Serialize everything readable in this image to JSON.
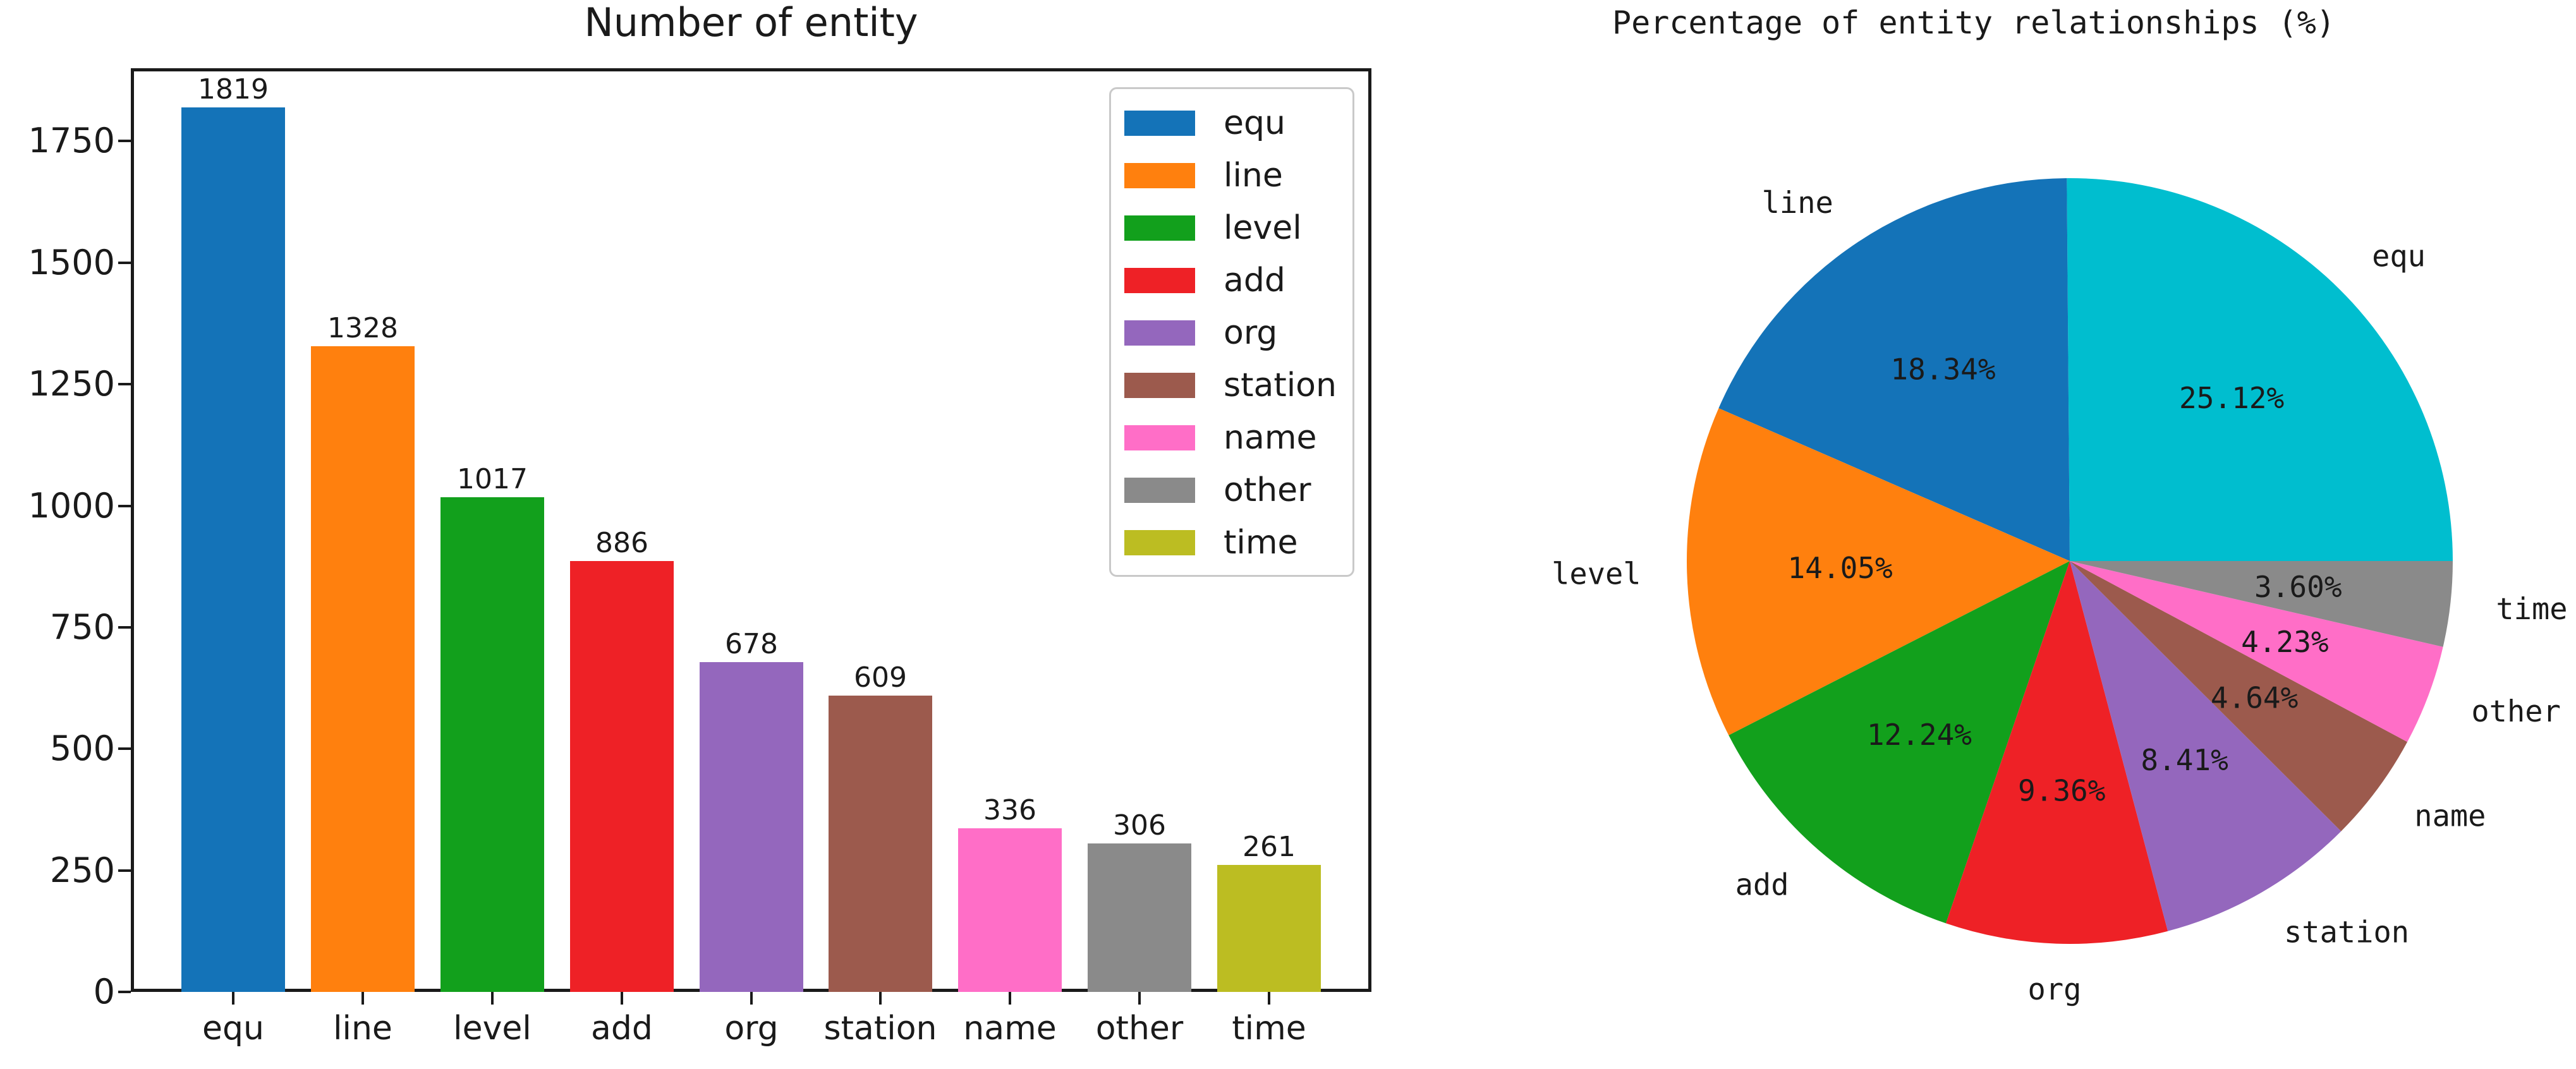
{
  "chart_data": [
    {
      "type": "bar",
      "title": "Number of entity",
      "categories": [
        "equ",
        "line",
        "level",
        "add",
        "org",
        "station",
        "name",
        "other",
        "time"
      ],
      "values": [
        1819,
        1328,
        1017,
        886,
        678,
        609,
        336,
        306,
        261
      ],
      "bar_colors": [
        "#1473b8",
        "#ff800e",
        "#12a01c",
        "#ee2126",
        "#9467bd",
        "#9c5a4d",
        "#ff6ec7",
        "#8a8a8a",
        "#bcbd22"
      ],
      "value_labels": [
        "1819",
        "1328",
        "1017",
        "886",
        "678",
        "609",
        "336",
        "306",
        "261"
      ],
      "xlabel": "",
      "ylabel": "",
      "yticks": [
        0,
        250,
        500,
        750,
        1000,
        1250,
        1500,
        1750
      ],
      "ylim": [
        0,
        1900
      ],
      "grid": false,
      "legend": {
        "position": "upper right",
        "entries": [
          {
            "label": "equ",
            "color": "#1473b8"
          },
          {
            "label": "line",
            "color": "#ff800e"
          },
          {
            "label": "level",
            "color": "#12a01c"
          },
          {
            "label": "add",
            "color": "#ee2126"
          },
          {
            "label": "org",
            "color": "#9467bd"
          },
          {
            "label": "station",
            "color": "#9c5a4d"
          },
          {
            "label": "name",
            "color": "#ff6ec7"
          },
          {
            "label": "other",
            "color": "#8a8a8a"
          },
          {
            "label": "time",
            "color": "#bcbd22"
          }
        ]
      }
    },
    {
      "type": "pie",
      "title": "Percentage of entity relationships (%)",
      "labels": [
        "equ",
        "line",
        "level",
        "add",
        "org",
        "station",
        "name",
        "other",
        "time"
      ],
      "values": [
        25.12,
        18.34,
        14.05,
        12.24,
        9.36,
        8.41,
        4.64,
        4.23,
        3.6
      ],
      "pct_labels": [
        "25.12%",
        "18.34%",
        "14.05%",
        "12.24%",
        "9.36%",
        "8.41%",
        "4.64%",
        "4.23%",
        "3.60%"
      ],
      "slice_colors": [
        "#00becf",
        "#1473b8",
        "#ff800e",
        "#12a01c",
        "#ee2126",
        "#9467bd",
        "#9c5a4d",
        "#ff6ec7",
        "#8a8a8a"
      ],
      "start_angle_deg": 0,
      "direction": "counterclockwise",
      "label_distance": 1.12,
      "pct_distance": 0.6,
      "legend_position": "none"
    }
  ]
}
